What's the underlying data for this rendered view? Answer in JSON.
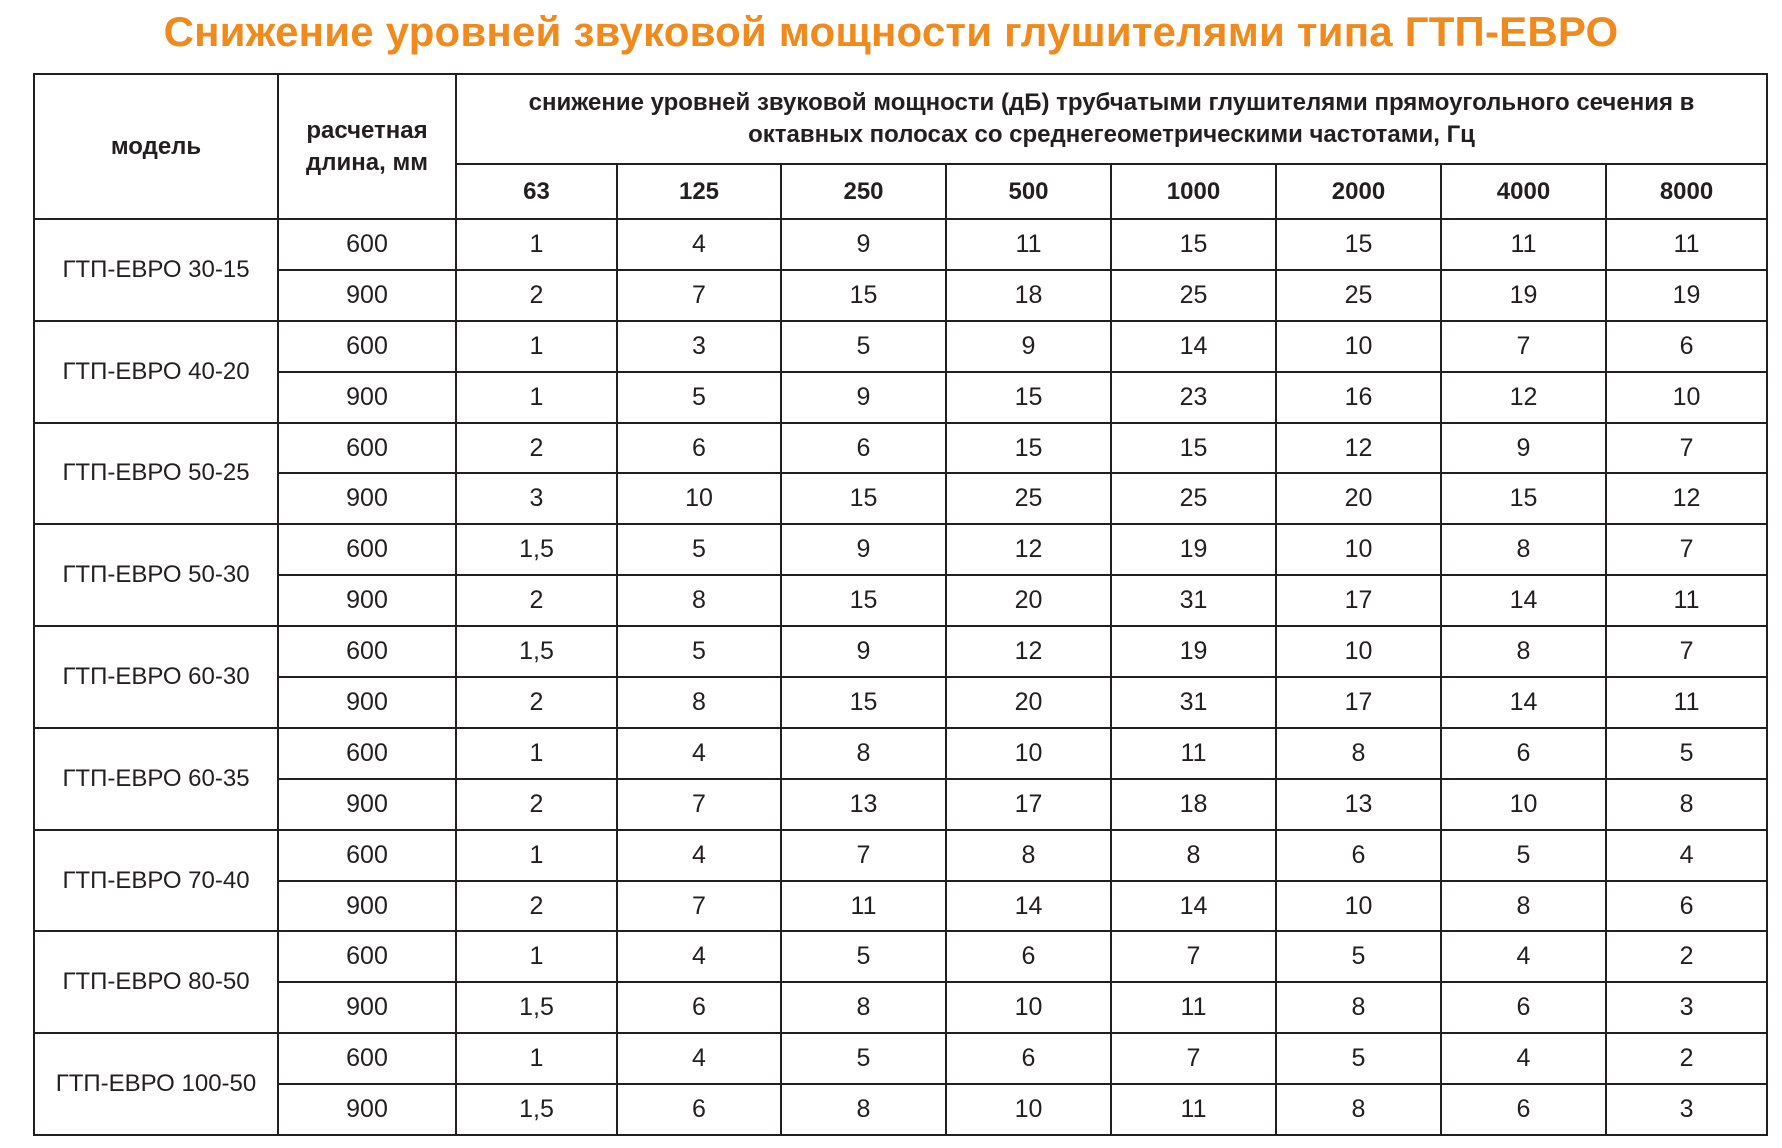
{
  "title": "Снижение уровней звуковой мощности глушителями типа ГТП-ЕВРО",
  "header": {
    "model": "модель",
    "length": "расчетная длина, мм",
    "reduction": "снижение уровней звуковой мощности (дБ)  трубчатыми глушителями прямоугольного сечения в октавных полосах со среднегеометрическими частотами, Гц",
    "frequencies": [
      "63",
      "125",
      "250",
      "500",
      "1000",
      "2000",
      "4000",
      "8000"
    ]
  },
  "rows": [
    {
      "model": "ГТП-ЕВРО 30-15",
      "lines": [
        {
          "length": "600",
          "values": [
            "1",
            "4",
            "9",
            "11",
            "15",
            "15",
            "11",
            "11"
          ]
        },
        {
          "length": "900",
          "values": [
            "2",
            "7",
            "15",
            "18",
            "25",
            "25",
            "19",
            "19"
          ]
        }
      ]
    },
    {
      "model": "ГТП-ЕВРО 40-20",
      "lines": [
        {
          "length": "600",
          "values": [
            "1",
            "3",
            "5",
            "9",
            "14",
            "10",
            "7",
            "6"
          ]
        },
        {
          "length": "900",
          "values": [
            "1",
            "5",
            "9",
            "15",
            "23",
            "16",
            "12",
            "10"
          ]
        }
      ]
    },
    {
      "model": "ГТП-ЕВРО 50-25",
      "lines": [
        {
          "length": "600",
          "values": [
            "2",
            "6",
            "6",
            "15",
            "15",
            "12",
            "9",
            "7"
          ]
        },
        {
          "length": "900",
          "values": [
            "3",
            "10",
            "15",
            "25",
            "25",
            "20",
            "15",
            "12"
          ]
        }
      ]
    },
    {
      "model": "ГТП-ЕВРО 50-30",
      "lines": [
        {
          "length": "600",
          "values": [
            "1,5",
            "5",
            "9",
            "12",
            "19",
            "10",
            "8",
            "7"
          ]
        },
        {
          "length": "900",
          "values": [
            "2",
            "8",
            "15",
            "20",
            "31",
            "17",
            "14",
            "11"
          ]
        }
      ]
    },
    {
      "model": "ГТП-ЕВРО 60-30",
      "lines": [
        {
          "length": "600",
          "values": [
            "1,5",
            "5",
            "9",
            "12",
            "19",
            "10",
            "8",
            "7"
          ]
        },
        {
          "length": "900",
          "values": [
            "2",
            "8",
            "15",
            "20",
            "31",
            "17",
            "14",
            "11"
          ]
        }
      ]
    },
    {
      "model": "ГТП-ЕВРО 60-35",
      "lines": [
        {
          "length": "600",
          "values": [
            "1",
            "4",
            "8",
            "10",
            "11",
            "8",
            "6",
            "5"
          ]
        },
        {
          "length": "900",
          "values": [
            "2",
            "7",
            "13",
            "17",
            "18",
            "13",
            "10",
            "8"
          ]
        }
      ]
    },
    {
      "model": "ГТП-ЕВРО 70-40",
      "lines": [
        {
          "length": "600",
          "values": [
            "1",
            "4",
            "7",
            "8",
            "8",
            "6",
            "5",
            "4"
          ]
        },
        {
          "length": "900",
          "values": [
            "2",
            "7",
            "11",
            "14",
            "14",
            "10",
            "8",
            "6"
          ]
        }
      ]
    },
    {
      "model": "ГТП-ЕВРО 80-50",
      "lines": [
        {
          "length": "600",
          "values": [
            "1",
            "4",
            "5",
            "6",
            "7",
            "5",
            "4",
            "2"
          ]
        },
        {
          "length": "900",
          "values": [
            "1,5",
            "6",
            "8",
            "10",
            "11",
            "8",
            "6",
            "3"
          ]
        }
      ]
    },
    {
      "model": "ГТП-ЕВРО 100-50",
      "lines": [
        {
          "length": "600",
          "values": [
            "1",
            "4",
            "5",
            "6",
            "7",
            "5",
            "4",
            "2"
          ]
        },
        {
          "length": "900",
          "values": [
            "1,5",
            "6",
            "8",
            "10",
            "11",
            "8",
            "6",
            "3"
          ]
        }
      ]
    }
  ],
  "colors": {
    "title": "#f08a1c",
    "text": "#231f20",
    "border": "#231f20"
  }
}
